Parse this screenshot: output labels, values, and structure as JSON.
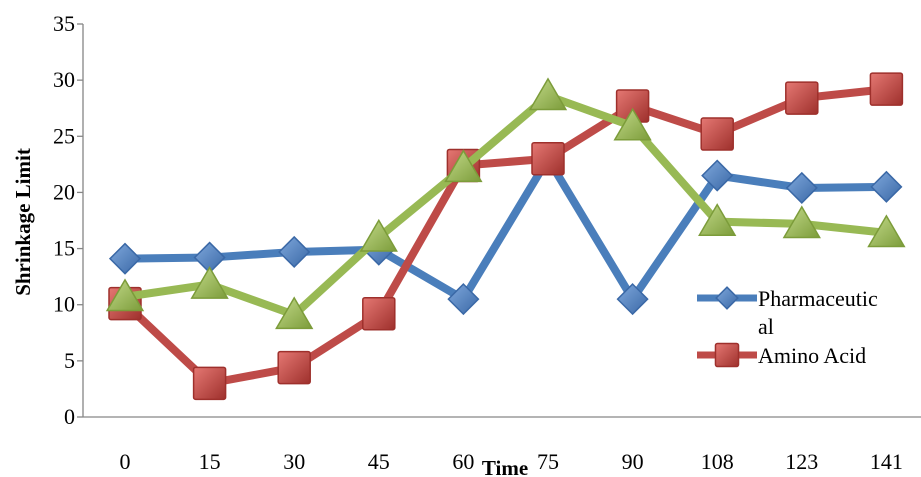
{
  "chart_data": {
    "type": "line",
    "categories": [
      "0",
      "15",
      "30",
      "45",
      "60",
      "75",
      "90",
      "108",
      "123",
      "141"
    ],
    "xlabel": "Time",
    "ylabel": "Shrinkage Limit",
    "ylim": [
      0,
      35
    ],
    "yticks": [
      0,
      5,
      10,
      15,
      20,
      25,
      30,
      35
    ],
    "grid": false,
    "legend": "right",
    "series": [
      {
        "name": "Pharmaceutic",
        "name_wrap": "al",
        "color": "#4a7ebb",
        "marker": "diamond",
        "values": [
          14.1,
          14.2,
          14.7,
          14.9,
          10.5,
          23.0,
          10.5,
          21.5,
          20.4,
          20.5
        ]
      },
      {
        "name": "Amino Acid",
        "color": "#be4b48",
        "marker": "square",
        "values": [
          10.1,
          3.0,
          4.4,
          9.2,
          22.4,
          23.0,
          27.7,
          25.2,
          28.4,
          29.2
        ]
      },
      {
        "color": "#98b954",
        "marker": "triangle",
        "values": [
          10.7,
          11.8,
          9.1,
          16.0,
          22.2,
          28.6,
          25.9,
          17.4,
          17.2,
          16.4
        ]
      }
    ]
  }
}
